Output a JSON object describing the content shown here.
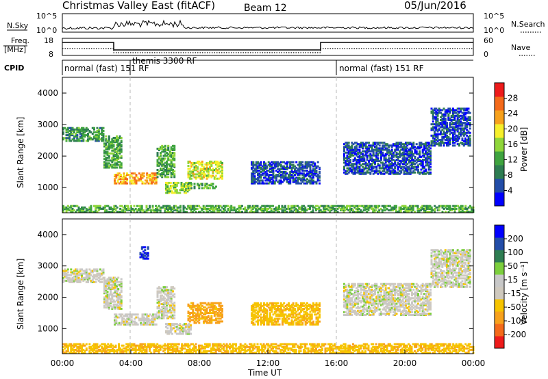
{
  "header": {
    "title": "Christmas Valley East (fitACF)",
    "beam": "Beam 12",
    "date": "05/Jun/2016"
  },
  "nsky_panel": {
    "left_label": "N.Sky",
    "ticks": [
      "10^5",
      "10^0"
    ],
    "right_label": "N.Search"
  },
  "freq_panel": {
    "left_label_1": "Freq.",
    "left_label_2": "[MHz]",
    "left_ticks": [
      "18",
      "8"
    ],
    "right_ticks": [
      "60",
      "0"
    ],
    "right_label": "Nave"
  },
  "cpid": {
    "label": "CPID",
    "modes": [
      {
        "text": "normal (fast) 151 RF",
        "start_h": 0
      },
      {
        "text": "themis 3300 RF",
        "start_h": 3.15
      },
      {
        "text": "normal (fast) 151 RF",
        "start_h": 16.0
      }
    ]
  },
  "colors": {
    "power": [
      "#0000ff",
      "#234da8",
      "#2e7d52",
      "#3fa43f",
      "#8fd63a",
      "#f6ef2b",
      "#f7a11c",
      "#f46a1a",
      "#ee1b1b"
    ],
    "velocity": [
      "#ee1b1b",
      "#f46a1a",
      "#f7a11c",
      "#f6c400",
      "#cfc9be",
      "#c8c8c8",
      "#7ccf3d",
      "#2e7d52",
      "#234da8",
      "#0000ff"
    ]
  },
  "chart_data": [
    {
      "type": "heatmap",
      "name": "Power",
      "ylabel": "Slant Range [km]",
      "colorbar_label": "Power [dB]",
      "colorbar_ticks": [
        "4",
        "8",
        "12",
        "16",
        "20",
        "24",
        "28"
      ],
      "ylim": [
        200,
        4500
      ],
      "xlim": [
        0,
        24
      ],
      "y_ticks": [
        "1000",
        "2000",
        "3000",
        "4000"
      ],
      "regions": [
        {
          "t0": 0.0,
          "t1": 2.4,
          "r0": 2450,
          "r1": 2900,
          "power": 14
        },
        {
          "t0": 2.4,
          "t1": 3.4,
          "r0": 1600,
          "r1": 2600,
          "power": 16
        },
        {
          "t0": 3.0,
          "t1": 5.5,
          "r0": 1100,
          "r1": 1450,
          "power": 28
        },
        {
          "t0": 5.5,
          "t1": 6.5,
          "r0": 1300,
          "r1": 2300,
          "power": 16
        },
        {
          "t0": 6.0,
          "t1": 7.5,
          "r0": 800,
          "r1": 1150,
          "power": 20
        },
        {
          "t0": 7.3,
          "t1": 9.3,
          "r0": 1250,
          "r1": 1800,
          "power": 22
        },
        {
          "t0": 7.3,
          "t1": 9.0,
          "r0": 950,
          "r1": 1100,
          "power": 16
        },
        {
          "t0": 11.0,
          "t1": 15.0,
          "r0": 1100,
          "r1": 1800,
          "power": 8
        },
        {
          "t0": 16.4,
          "t1": 21.5,
          "r0": 1400,
          "r1": 2400,
          "power": 8
        },
        {
          "t0": 21.5,
          "t1": 23.8,
          "r0": 2300,
          "r1": 3500,
          "power": 8
        },
        {
          "t0": 0.0,
          "t1": 24.0,
          "r0": 200,
          "r1": 400,
          "power": 16
        }
      ]
    },
    {
      "type": "heatmap",
      "name": "Velocity",
      "ylabel": "Slant Range [km]",
      "xlabel": "Time UT",
      "colorbar_label": "Velocity [m s⁻¹]",
      "colorbar_ticks": [
        "-200",
        "-100",
        "-50",
        "-15",
        "15",
        "50",
        "100",
        "200"
      ],
      "ylim": [
        200,
        4500
      ],
      "xlim": [
        0,
        24
      ],
      "y_ticks": [
        "1000",
        "2000",
        "3000",
        "4000"
      ],
      "x_ticks": [
        "00:00",
        "04:00",
        "08:00",
        "12:00",
        "16:00",
        "20:00",
        "00:00"
      ],
      "regions": [
        {
          "t0": 0.0,
          "t1": 2.4,
          "r0": 2450,
          "r1": 2900,
          "vel": 0
        },
        {
          "t0": 2.4,
          "t1": 3.4,
          "r0": 1600,
          "r1": 2600,
          "vel": 0
        },
        {
          "t0": 3.0,
          "t1": 5.5,
          "r0": 1100,
          "r1": 1450,
          "vel": 0
        },
        {
          "t0": 5.5,
          "t1": 6.5,
          "r0": 1300,
          "r1": 2300,
          "vel": 0
        },
        {
          "t0": 6.0,
          "t1": 7.5,
          "r0": 800,
          "r1": 1150,
          "vel": 0
        },
        {
          "t0": 7.3,
          "t1": 9.3,
          "r0": 1150,
          "r1": 1800,
          "vel": -60
        },
        {
          "t0": 11.0,
          "t1": 15.0,
          "r0": 1100,
          "r1": 1800,
          "vel": -40
        },
        {
          "t0": 16.4,
          "t1": 21.5,
          "r0": 1400,
          "r1": 2400,
          "vel": 0
        },
        {
          "t0": 21.5,
          "t1": 23.8,
          "r0": 2300,
          "r1": 3500,
          "vel": 0
        },
        {
          "t0": 4.5,
          "t1": 5.0,
          "r0": 3200,
          "r1": 3600,
          "vel": 200
        },
        {
          "t0": 0.0,
          "t1": 24.0,
          "r0": 200,
          "r1": 500,
          "vel": -40
        }
      ]
    }
  ]
}
